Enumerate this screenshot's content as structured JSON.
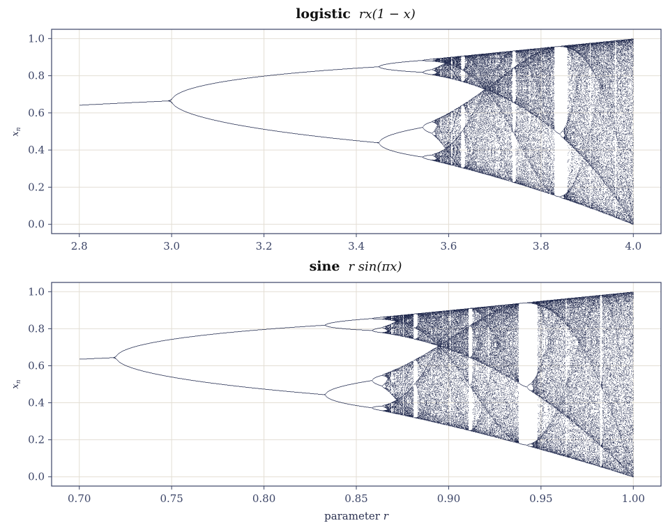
{
  "chart_data": [
    {
      "type": "scatter",
      "map": "logistic",
      "title_bold": "logistic",
      "title_math": "rx(1 − x)",
      "xlabel": "",
      "ylabel_var": "x",
      "ylabel_sub": "n",
      "xlim": [
        2.74,
        4.06
      ],
      "ylim": [
        -0.05,
        1.05
      ],
      "xticks": [
        2.8,
        3.0,
        3.2,
        3.4,
        3.6,
        3.8,
        4.0
      ],
      "xtick_labels": [
        "2.8",
        "3.0",
        "3.2",
        "3.4",
        "3.6",
        "3.8",
        "4.0"
      ],
      "yticks": [
        0.0,
        0.2,
        0.4,
        0.6,
        0.8,
        1.0
      ],
      "ytick_labels": [
        "0.0",
        "0.2",
        "0.4",
        "0.6",
        "0.8",
        "1.0"
      ],
      "r_range": [
        2.8,
        4.0
      ],
      "grid": true,
      "point_color": "#1a2348"
    },
    {
      "type": "scatter",
      "map": "sine",
      "title_bold": "sine",
      "title_math": "r sin(πx)",
      "xlabel_text": "parameter",
      "xlabel_var": "r",
      "ylabel_var": "x",
      "ylabel_sub": "n",
      "xlim": [
        0.685,
        1.015
      ],
      "ylim": [
        -0.05,
        1.05
      ],
      "xticks": [
        0.7,
        0.75,
        0.8,
        0.85,
        0.9,
        0.95,
        1.0
      ],
      "xtick_labels": [
        "0.70",
        "0.75",
        "0.80",
        "0.85",
        "0.90",
        "0.95",
        "1.00"
      ],
      "yticks": [
        0.0,
        0.2,
        0.4,
        0.6,
        0.8,
        1.0
      ],
      "ytick_labels": [
        "0.0",
        "0.2",
        "0.4",
        "0.6",
        "0.8",
        "1.0"
      ],
      "r_range": [
        0.7,
        1.0
      ],
      "grid": true,
      "point_color": "#1a2348"
    }
  ]
}
